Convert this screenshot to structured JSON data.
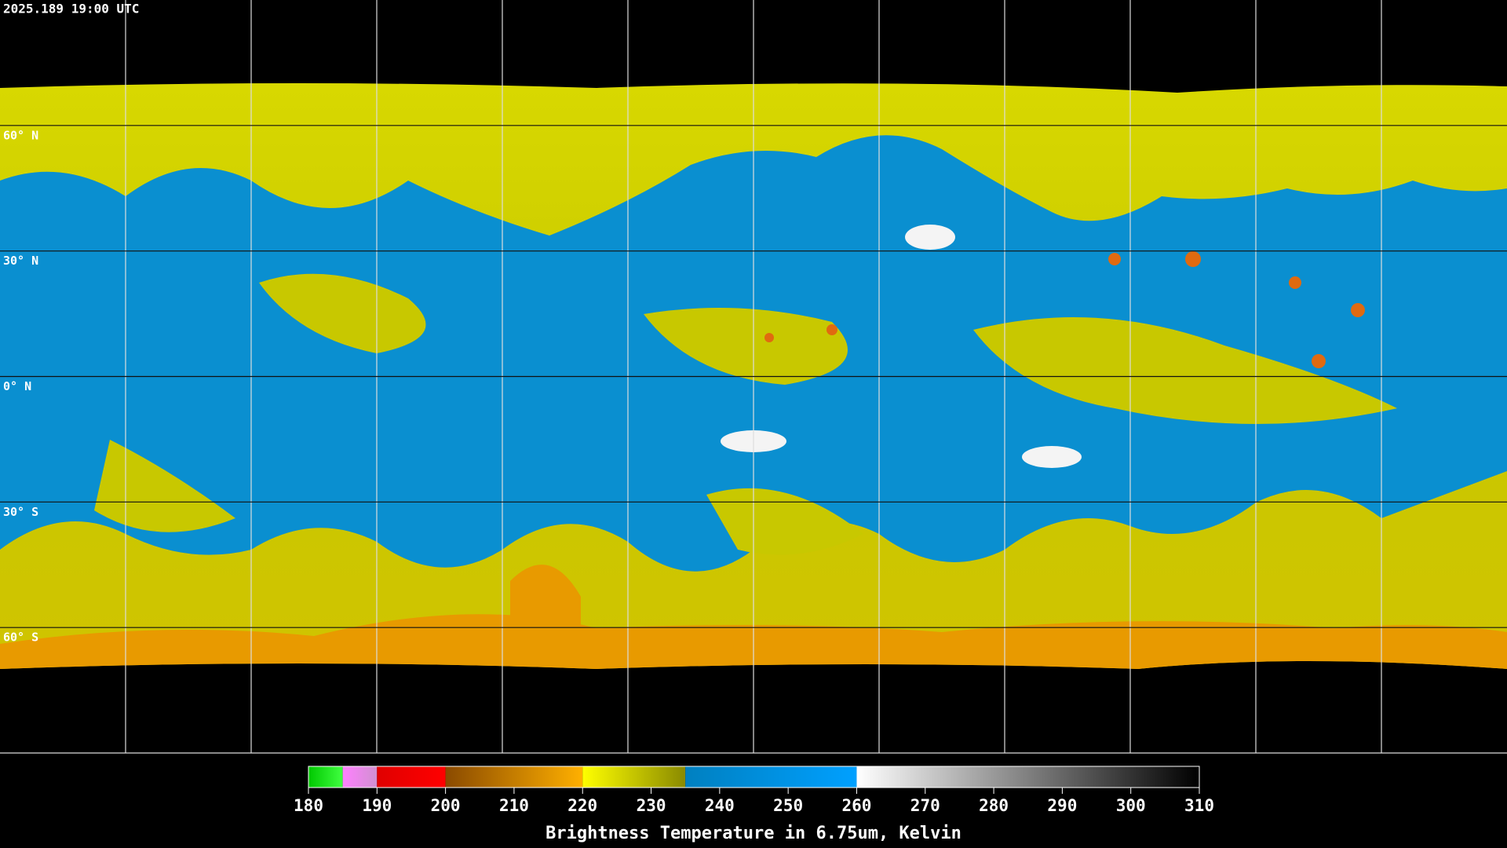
{
  "header": {
    "timestamp": "2025.189 19:00 UTC"
  },
  "map": {
    "latlim": [
      90,
      -90
    ],
    "latticks": [
      {
        "value": 60,
        "label": "60° N"
      },
      {
        "value": 30,
        "label": "30° N"
      },
      {
        "value": 0,
        "label": "0° N"
      },
      {
        "value": -30,
        "label": "30° S"
      },
      {
        "value": -60,
        "label": "60° S"
      }
    ]
  },
  "colorbar": {
    "title": "Brightness Temperature in 6.75um, Kelvin",
    "lim": [
      180,
      310
    ],
    "ticks": [
      180,
      190,
      200,
      210,
      220,
      230,
      240,
      250,
      260,
      270,
      280,
      290,
      300,
      310
    ],
    "segments": [
      {
        "from": 180,
        "to": 185,
        "colors": [
          "#00c800",
          "#40ff40"
        ]
      },
      {
        "from": 185,
        "to": 190,
        "colors": [
          "#ff80ff",
          "#d090d0"
        ]
      },
      {
        "from": 190,
        "to": 200,
        "colors": [
          "#e00000",
          "#ff0000"
        ]
      },
      {
        "from": 200,
        "to": 220,
        "colors": [
          "#8a4a00",
          "#ffb000"
        ]
      },
      {
        "from": 220,
        "to": 235,
        "colors": [
          "#ffff00",
          "#8a8a00"
        ]
      },
      {
        "from": 235,
        "to": 260,
        "colors": [
          "#0080c0",
          "#00a0ff"
        ]
      },
      {
        "from": 260,
        "to": 310,
        "colors": [
          "#ffffff",
          "#000000"
        ]
      }
    ]
  }
}
